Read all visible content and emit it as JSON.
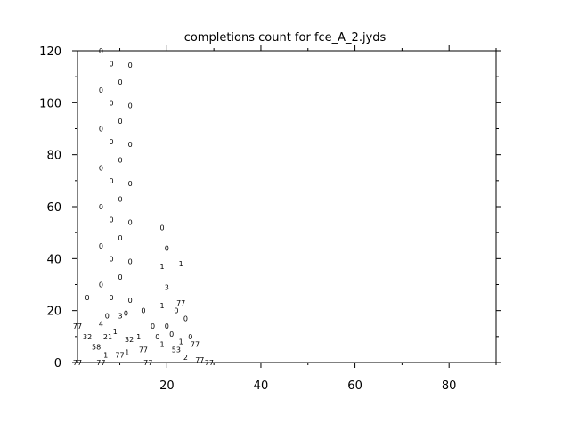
{
  "chart_data": {
    "type": "scatter",
    "marker": "text-label",
    "title": "completions count for fce_A_2.jyds",
    "xlabel": "",
    "ylabel": "",
    "xlim": [
      1,
      90
    ],
    "ylim": [
      0,
      120
    ],
    "xticks": [
      20,
      40,
      60,
      80
    ],
    "yticks": [
      0,
      20,
      40,
      60,
      80,
      100,
      120
    ],
    "grid": false,
    "color": "#000000",
    "points": [
      {
        "x": 6,
        "y": 120,
        "label": "0"
      },
      {
        "x": 8.2,
        "y": 115,
        "label": "0"
      },
      {
        "x": 12.2,
        "y": 114.5,
        "label": "0"
      },
      {
        "x": 10.1,
        "y": 108,
        "label": "0"
      },
      {
        "x": 6,
        "y": 105,
        "label": "0"
      },
      {
        "x": 8.2,
        "y": 100,
        "label": "0"
      },
      {
        "x": 12.2,
        "y": 99,
        "label": "0"
      },
      {
        "x": 10.1,
        "y": 93,
        "label": "0"
      },
      {
        "x": 6,
        "y": 90,
        "label": "0"
      },
      {
        "x": 8.2,
        "y": 85,
        "label": "0"
      },
      {
        "x": 12.2,
        "y": 84,
        "label": "0"
      },
      {
        "x": 10.1,
        "y": 78,
        "label": "0"
      },
      {
        "x": 6,
        "y": 75,
        "label": "0"
      },
      {
        "x": 8.2,
        "y": 70,
        "label": "0"
      },
      {
        "x": 12.2,
        "y": 69,
        "label": "0"
      },
      {
        "x": 10.1,
        "y": 63,
        "label": "0"
      },
      {
        "x": 6,
        "y": 60,
        "label": "0"
      },
      {
        "x": 8.2,
        "y": 55,
        "label": "0"
      },
      {
        "x": 12.2,
        "y": 54,
        "label": "0"
      },
      {
        "x": 10.1,
        "y": 48,
        "label": "0"
      },
      {
        "x": 6,
        "y": 45,
        "label": "0"
      },
      {
        "x": 8.2,
        "y": 40,
        "label": "0"
      },
      {
        "x": 12.2,
        "y": 39,
        "label": "0"
      },
      {
        "x": 10.1,
        "y": 33,
        "label": "0"
      },
      {
        "x": 6,
        "y": 30,
        "label": "0"
      },
      {
        "x": 3.1,
        "y": 25,
        "label": "0"
      },
      {
        "x": 8.2,
        "y": 25,
        "label": "0"
      },
      {
        "x": 12.2,
        "y": 24,
        "label": "0"
      },
      {
        "x": 7.3,
        "y": 18,
        "label": "0"
      },
      {
        "x": 10.1,
        "y": 18,
        "label": "3"
      },
      {
        "x": 11.3,
        "y": 19,
        "label": "0"
      },
      {
        "x": 15,
        "y": 20,
        "label": "0"
      },
      {
        "x": 1,
        "y": 14,
        "label": "77"
      },
      {
        "x": 6,
        "y": 15,
        "label": "4"
      },
      {
        "x": 9,
        "y": 12,
        "label": "1"
      },
      {
        "x": 8,
        "y": 10,
        "label": "21"
      },
      {
        "x": 3.1,
        "y": 10,
        "label": "32"
      },
      {
        "x": 12,
        "y": 9,
        "label": "32"
      },
      {
        "x": 14,
        "y": 10,
        "label": "1"
      },
      {
        "x": 5,
        "y": 6,
        "label": "58"
      },
      {
        "x": 7,
        "y": 3,
        "label": "1"
      },
      {
        "x": 10,
        "y": 3,
        "label": "77"
      },
      {
        "x": 11,
        "y": 4,
        "label": "1"
      },
      {
        "x": 1,
        "y": 0,
        "label": "77"
      },
      {
        "x": 6,
        "y": 0,
        "label": "77"
      },
      {
        "x": 15,
        "y": 5,
        "label": "77"
      },
      {
        "x": 19,
        "y": 52,
        "label": "0"
      },
      {
        "x": 20,
        "y": 44,
        "label": "0"
      },
      {
        "x": 19,
        "y": 37,
        "label": "1"
      },
      {
        "x": 23,
        "y": 38,
        "label": "1"
      },
      {
        "x": 20,
        "y": 29,
        "label": "3"
      },
      {
        "x": 19,
        "y": 22,
        "label": "1"
      },
      {
        "x": 23,
        "y": 23,
        "label": "77"
      },
      {
        "x": 22,
        "y": 20,
        "label": "0"
      },
      {
        "x": 24,
        "y": 17,
        "label": "0"
      },
      {
        "x": 17,
        "y": 14,
        "label": "0"
      },
      {
        "x": 20,
        "y": 14,
        "label": "0"
      },
      {
        "x": 21,
        "y": 11,
        "label": "0"
      },
      {
        "x": 18,
        "y": 10,
        "label": "0"
      },
      {
        "x": 19,
        "y": 7,
        "label": "1"
      },
      {
        "x": 23,
        "y": 8,
        "label": "1"
      },
      {
        "x": 25,
        "y": 10,
        "label": "0"
      },
      {
        "x": 26,
        "y": 7,
        "label": "77"
      },
      {
        "x": 22,
        "y": 5,
        "label": "53"
      },
      {
        "x": 24,
        "y": 2,
        "label": "2"
      },
      {
        "x": 16,
        "y": 0,
        "label": "77"
      },
      {
        "x": 27,
        "y": 1,
        "label": "77"
      },
      {
        "x": 29,
        "y": 0,
        "label": "77"
      }
    ]
  }
}
